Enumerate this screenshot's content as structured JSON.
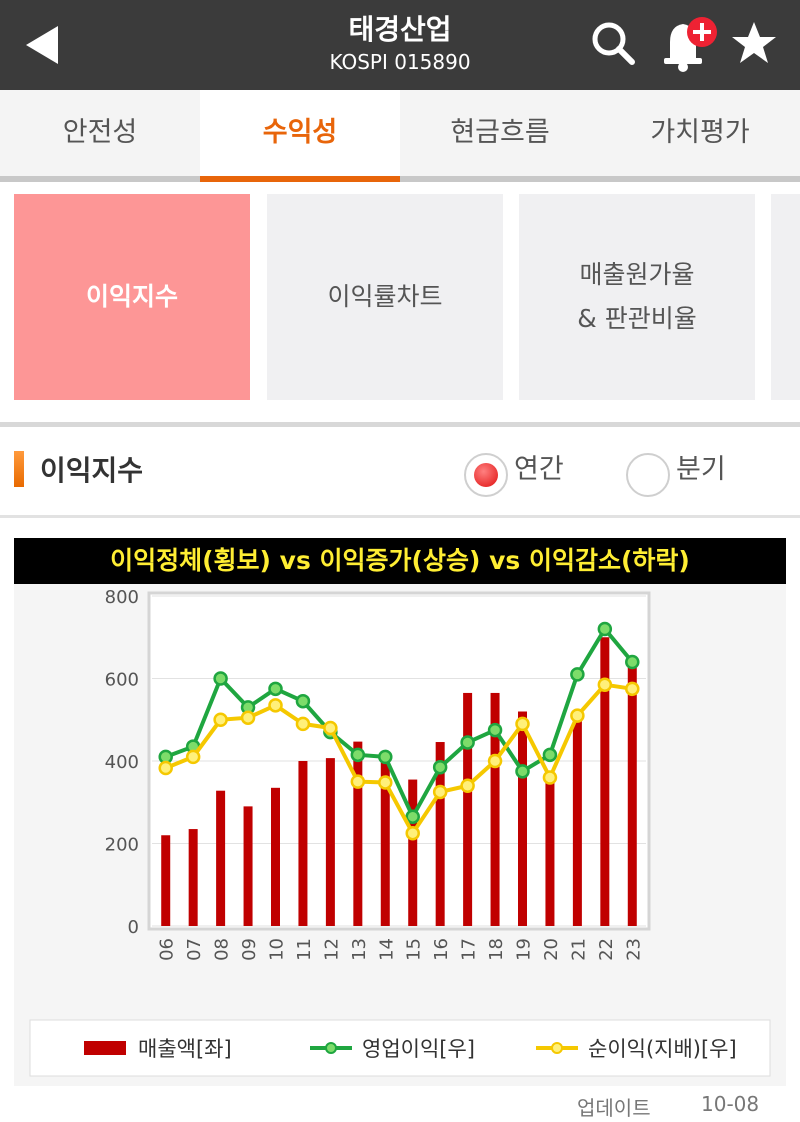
{
  "header": {
    "title": "태경산업",
    "subtitle": "KOSPI 015890"
  },
  "tabs": [
    {
      "label": "안전성",
      "active": false
    },
    {
      "label": "수익성",
      "active": true
    },
    {
      "label": "현금흐름",
      "active": false
    },
    {
      "label": "가치평가",
      "active": false
    }
  ],
  "subtabs": [
    {
      "line1": "이익지수",
      "line2": "",
      "active": true
    },
    {
      "line1": "이익률차트",
      "line2": "",
      "active": false
    },
    {
      "line1": "매출원가율",
      "line2": "& 판관비율",
      "active": false
    }
  ],
  "section": {
    "title": "이익지수"
  },
  "period": {
    "options": [
      "연간",
      "분기"
    ],
    "selected": "연간"
  },
  "banner": "이익정체(횡보) vs 이익증가(상승) vs 이익감소(하락)",
  "update": {
    "label": "업데이트",
    "date": "10-08"
  },
  "colors": {
    "bar": "#c00000",
    "line1": "#1fa640",
    "line2": "#f5c800",
    "accent": "#e8650a",
    "active_subtab": "#fd9696"
  },
  "chart_data": {
    "type": "bar",
    "categories": [
      "06",
      "07",
      "08",
      "09",
      "10",
      "11",
      "12",
      "13",
      "14",
      "15",
      "16",
      "17",
      "18",
      "19",
      "20",
      "21",
      "22",
      "23"
    ],
    "ylim": [
      0,
      800
    ],
    "yticks": [
      0,
      200,
      400,
      600,
      800
    ],
    "grid": true,
    "legend_position": "bottom",
    "series": [
      {
        "name": "매출액[좌]",
        "type": "bar",
        "values": [
          220,
          235,
          328,
          290,
          335,
          400,
          407,
          447,
          410,
          355,
          446,
          565,
          565,
          520,
          375,
          520,
          700,
          630
        ]
      },
      {
        "name": "영업이익[우]",
        "type": "line",
        "values": [
          410,
          435,
          600,
          530,
          575,
          545,
          470,
          415,
          410,
          265,
          385,
          445,
          475,
          375,
          415,
          610,
          720,
          640
        ]
      },
      {
        "name": "순이익(지배)[우]",
        "type": "line",
        "values": [
          383,
          410,
          500,
          505,
          535,
          490,
          480,
          350,
          348,
          225,
          325,
          340,
          400,
          490,
          360,
          510,
          585,
          575
        ]
      }
    ]
  }
}
